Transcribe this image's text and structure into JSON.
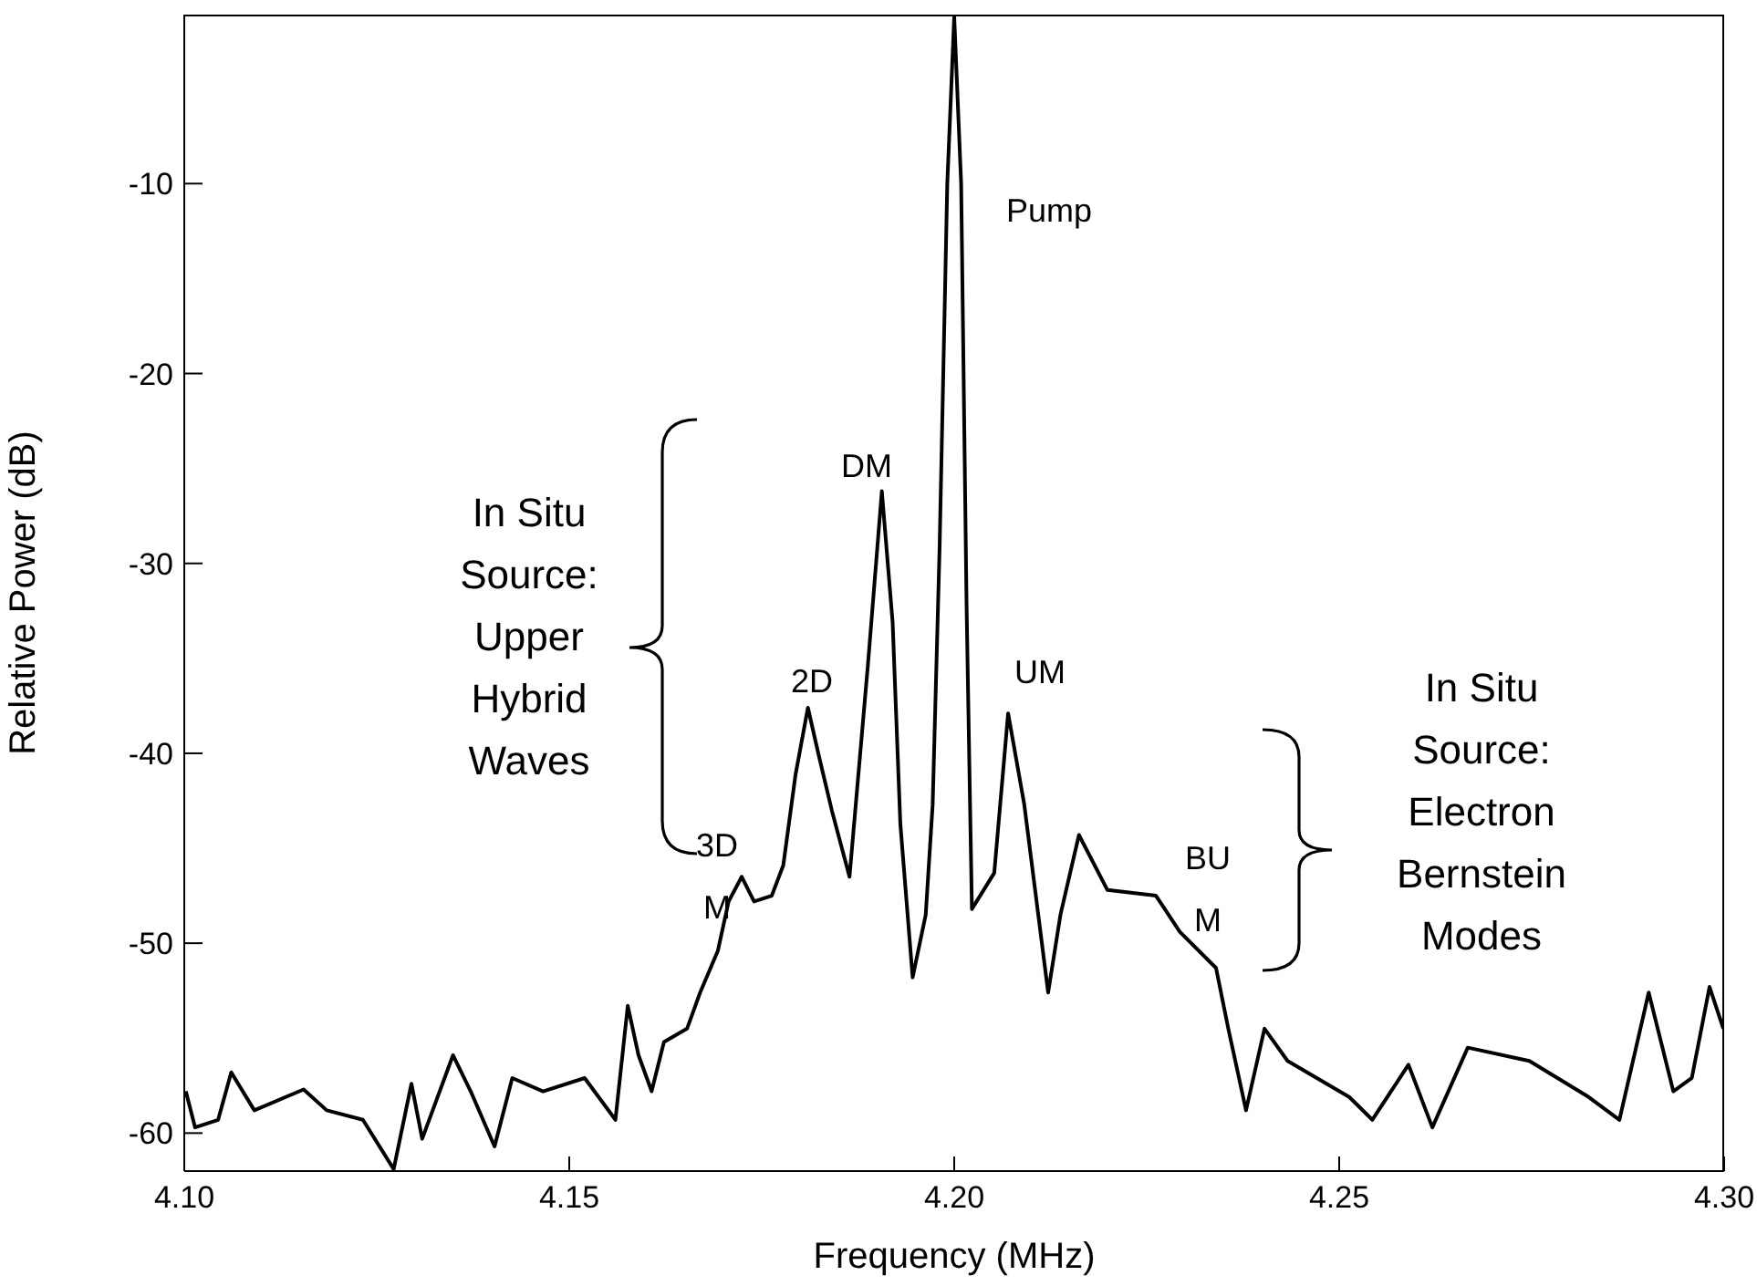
{
  "chart_data": {
    "type": "line",
    "xlabel": "Frequency (MHz)",
    "ylabel": "Relative Power (dB)",
    "xlim": [
      4.1,
      4.3
    ],
    "ylim": [
      -62,
      -1.1
    ],
    "xticks": [
      {
        "value": 4.1,
        "label": "4.10"
      },
      {
        "value": 4.15,
        "label": "4.15"
      },
      {
        "value": 4.2,
        "label": "4.20"
      },
      {
        "value": 4.25,
        "label": "4.25"
      },
      {
        "value": 4.3,
        "label": "4.30"
      }
    ],
    "yticks": [
      -10,
      -20,
      -30,
      -40,
      -50,
      -60
    ],
    "marker": "none",
    "line_style": "solid",
    "series": [
      {
        "color": "#000000",
        "x": [
          4.1002,
          4.1014,
          4.1044,
          4.1061,
          4.1091,
          4.1155,
          4.1185,
          4.1232,
          4.1272,
          4.1295,
          4.1309,
          4.1349,
          4.1372,
          4.1403,
          4.1426,
          4.1466,
          4.152,
          4.156,
          4.1576,
          4.159,
          4.1607,
          4.1623,
          4.1653,
          4.167,
          4.1693,
          4.1707,
          4.1724,
          4.174,
          4.1763,
          4.1778,
          4.1794,
          4.181,
          4.1824,
          4.1841,
          4.1864,
          4.1888,
          4.1906,
          4.192,
          4.193,
          4.1946,
          4.1963,
          4.1972,
          4.1981,
          4.1991,
          4.2,
          4.2009,
          4.2016,
          4.2021,
          4.2023,
          4.2052,
          4.207,
          4.2091,
          4.2122,
          4.2138,
          4.2162,
          4.2199,
          4.2262,
          4.2293,
          4.234,
          4.2356,
          4.2379,
          4.2403,
          4.2433,
          4.2513,
          4.2543,
          4.259,
          4.2621,
          4.2667,
          4.2747,
          4.2824,
          4.2864,
          4.2902,
          4.2934,
          4.2958,
          4.2981,
          4.2999
        ],
        "values": [
          -57.8,
          -59.7,
          -59.3,
          -56.8,
          -58.8,
          -57.7,
          -58.8,
          -59.3,
          -61.9,
          -57.4,
          -60.3,
          -55.9,
          -57.8,
          -60.7,
          -57.1,
          -57.8,
          -57.1,
          -59.3,
          -53.3,
          -55.9,
          -57.8,
          -55.2,
          -54.5,
          -52.6,
          -50.4,
          -47.8,
          -46.5,
          -47.8,
          -47.5,
          -45.9,
          -41.1,
          -37.6,
          -40.1,
          -43.0,
          -46.5,
          -35.3,
          -26.2,
          -33.1,
          -43.7,
          -51.8,
          -48.5,
          -42.7,
          -29.2,
          -10.0,
          -1.2,
          -10.0,
          -32.1,
          -43.7,
          -48.2,
          -46.3,
          -37.9,
          -42.7,
          -52.6,
          -48.5,
          -44.3,
          -47.2,
          -47.5,
          -49.4,
          -51.3,
          -54.5,
          -58.8,
          -54.5,
          -56.2,
          -58.1,
          -59.3,
          -56.4,
          -59.7,
          -55.5,
          -56.2,
          -58.1,
          -59.3,
          -52.6,
          -57.8,
          -57.1,
          -52.3,
          -54.5
        ]
      }
    ],
    "annotations": [
      "Pump",
      "DM",
      "2D",
      "3D\nM",
      "UM",
      "BU\nM",
      "In Situ\nSource:\nUpper\nHybrid\nWaves",
      "In Situ\nSource:\nElectron\nBernstein\nModes"
    ]
  }
}
